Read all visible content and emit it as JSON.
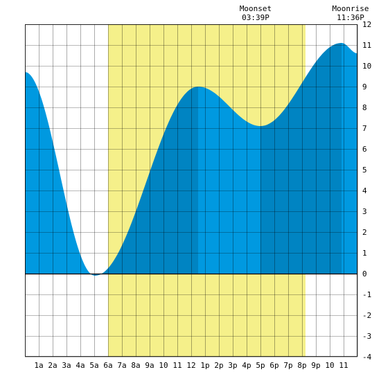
{
  "chart_data": {
    "type": "area",
    "x_unit": "hour of day",
    "x_ticks": [
      {
        "h": 1,
        "label": "1a"
      },
      {
        "h": 2,
        "label": "2a"
      },
      {
        "h": 3,
        "label": "3a"
      },
      {
        "h": 4,
        "label": "4a"
      },
      {
        "h": 5,
        "label": "5a"
      },
      {
        "h": 6,
        "label": "6a"
      },
      {
        "h": 7,
        "label": "7a"
      },
      {
        "h": 8,
        "label": "8a"
      },
      {
        "h": 9,
        "label": "9a"
      },
      {
        "h": 10,
        "label": "10"
      },
      {
        "h": 11,
        "label": "11"
      },
      {
        "h": 12,
        "label": "12"
      },
      {
        "h": 13,
        "label": "1p"
      },
      {
        "h": 14,
        "label": "2p"
      },
      {
        "h": 15,
        "label": "3p"
      },
      {
        "h": 16,
        "label": "4p"
      },
      {
        "h": 17,
        "label": "5p"
      },
      {
        "h": 18,
        "label": "6p"
      },
      {
        "h": 19,
        "label": "7p"
      },
      {
        "h": 20,
        "label": "8p"
      },
      {
        "h": 21,
        "label": "9p"
      },
      {
        "h": 22,
        "label": "10"
      },
      {
        "h": 23,
        "label": "11"
      }
    ],
    "xlim": [
      0,
      24
    ],
    "ylim": [
      -4,
      12
    ],
    "y_ticks": [
      12,
      11,
      10,
      9,
      8,
      7,
      6,
      5,
      4,
      3,
      2,
      1,
      0,
      -1,
      -2,
      -3,
      -4
    ],
    "grid": true,
    "daylight": {
      "start": 6,
      "end": 20.25
    },
    "extremes": [
      {
        "t": 0.0,
        "h": 9.7
      },
      {
        "t": 5.05,
        "h": -0.1
      },
      {
        "t": 12.5,
        "h": 9.0
      },
      {
        "t": 17.0,
        "h": 7.1
      },
      {
        "t": 22.85,
        "h": 11.1
      },
      {
        "t": 24.0,
        "h": 10.6
      }
    ],
    "tide_shading": [
      {
        "from": 0,
        "to": 5.05,
        "shade": "falling"
      },
      {
        "from": 5.05,
        "to": 12.5,
        "shade": "rising"
      },
      {
        "from": 12.5,
        "to": 17.0,
        "shade": "falling"
      },
      {
        "from": 17.0,
        "to": 22.85,
        "shade": "rising"
      },
      {
        "from": 22.85,
        "to": 24,
        "shade": "falling"
      }
    ],
    "annotations": [
      {
        "label": "Moonset",
        "time": "03:39P"
      },
      {
        "label": "Moonrise",
        "time": "11:36P"
      }
    ],
    "colors": {
      "daylight": "#f5f08a",
      "falling": "#0099e0",
      "rising": "#0084c2",
      "grid": "#000000",
      "background": "#ffffff"
    }
  }
}
